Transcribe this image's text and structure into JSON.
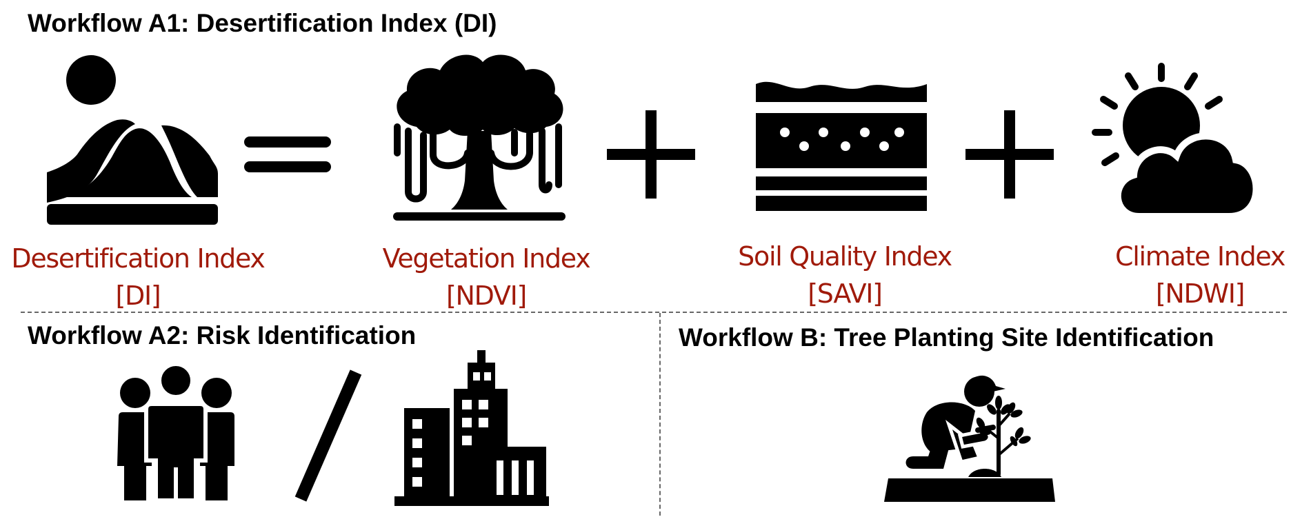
{
  "colors": {
    "caption": "#a01a0a",
    "icon": "#000000",
    "divider": "#666666"
  },
  "workflow_a1": {
    "title": "Workflow A1: Desertification Index (DI)",
    "equation": [
      {
        "icon": "desert-mountain-sun-icon",
        "label": "Desertification Index",
        "code": "[DI]"
      },
      {
        "operator": "equals-icon"
      },
      {
        "icon": "tree-icon",
        "label": "Vegetation Index",
        "code": "[NDVI]"
      },
      {
        "operator": "plus-icon"
      },
      {
        "icon": "soil-layers-icon",
        "label": "Soil Quality Index",
        "code": "[SAVI]"
      },
      {
        "operator": "plus-icon"
      },
      {
        "icon": "sun-cloud-icon",
        "label": "Climate Index",
        "code": "[NDWI]"
      }
    ]
  },
  "workflow_a2": {
    "title": "Workflow A2: Risk Identification",
    "icons": [
      "people-group-icon",
      "slash-icon",
      "city-buildings-icon"
    ]
  },
  "workflow_b": {
    "title": "Workflow B: Tree Planting Site Identification",
    "icons": [
      "person-planting-tree-icon"
    ]
  }
}
